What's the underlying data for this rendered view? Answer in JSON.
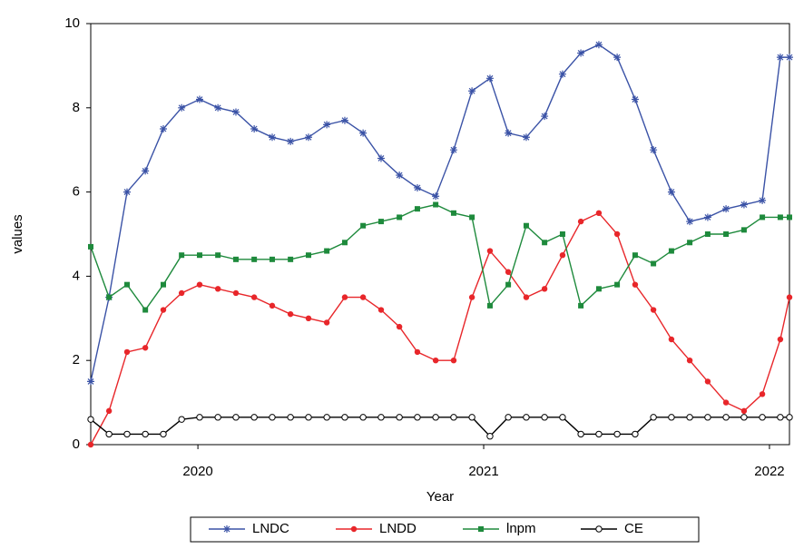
{
  "chart_data": {
    "type": "line",
    "x_label": "Year",
    "y_label": "values",
    "x": [
      2019.625,
      2019.689,
      2019.752,
      2019.816,
      2019.879,
      2019.943,
      2020.006,
      2020.07,
      2020.133,
      2020.197,
      2020.26,
      2020.324,
      2020.387,
      2020.451,
      2020.514,
      2020.578,
      2020.641,
      2020.705,
      2020.768,
      2020.832,
      2020.895,
      2020.959,
      2021.022,
      2021.086,
      2021.149,
      2021.213,
      2021.276,
      2021.34,
      2021.403,
      2021.467,
      2021.53,
      2021.594,
      2021.657,
      2021.721,
      2021.784,
      2021.848,
      2021.911,
      2021.975,
      2022.038,
      2022.07
    ],
    "series": [
      {
        "name": "LNDC",
        "color": "#3a52a6",
        "marker": "star",
        "values": [
          1.5,
          3.5,
          6.0,
          6.5,
          7.5,
          8.0,
          8.2,
          8.0,
          7.9,
          7.5,
          7.3,
          7.2,
          7.3,
          7.6,
          7.7,
          7.4,
          6.8,
          6.4,
          6.1,
          5.9,
          7.0,
          8.4,
          8.7,
          7.4,
          7.3,
          7.8,
          8.8,
          9.3,
          9.5,
          9.2,
          8.2,
          7.0,
          6.0,
          5.3,
          5.4,
          5.6,
          5.7,
          5.8,
          9.2,
          9.2
        ]
      },
      {
        "name": "LNDD",
        "color": "#e8262a",
        "marker": "circle",
        "values": [
          0,
          0.8,
          2.2,
          2.3,
          3.2,
          3.6,
          3.8,
          3.7,
          3.6,
          3.5,
          3.3,
          3.1,
          3.0,
          2.9,
          3.5,
          3.5,
          3.2,
          2.8,
          2.2,
          2.0,
          2.0,
          3.5,
          4.6,
          4.1,
          3.5,
          3.7,
          4.5,
          5.3,
          5.5,
          5.0,
          3.8,
          3.2,
          2.5,
          2.0,
          1.5,
          1.0,
          0.8,
          1.2,
          2.5,
          3.5
        ]
      },
      {
        "name": "lnpm",
        "color": "#1e8a3c",
        "marker": "square",
        "values": [
          4.7,
          3.5,
          3.8,
          3.2,
          3.8,
          4.5,
          4.5,
          4.5,
          4.4,
          4.4,
          4.4,
          4.4,
          4.5,
          4.6,
          4.8,
          5.2,
          5.3,
          5.4,
          5.6,
          5.7,
          5.5,
          5.4,
          3.3,
          3.8,
          5.2,
          4.8,
          5.0,
          3.3,
          3.7,
          3.8,
          4.5,
          4.3,
          4.6,
          4.8,
          5.0,
          5.0,
          5.1,
          5.4,
          5.4,
          5.4
        ]
      },
      {
        "name": "CE",
        "color": "#000000",
        "marker": "open-circle",
        "values": [
          0.6,
          0.25,
          0.25,
          0.25,
          0.25,
          0.6,
          0.65,
          0.65,
          0.65,
          0.65,
          0.65,
          0.65,
          0.65,
          0.65,
          0.65,
          0.65,
          0.65,
          0.65,
          0.65,
          0.65,
          0.65,
          0.65,
          0.2,
          0.65,
          0.65,
          0.65,
          0.65,
          0.25,
          0.25,
          0.25,
          0.25,
          0.65,
          0.65,
          0.65,
          0.65,
          0.65,
          0.65,
          0.65,
          0.65,
          0.65
        ]
      }
    ],
    "xlim": [
      2019.625,
      2022.07
    ],
    "xticks": [
      2020,
      2021,
      2022
    ],
    "ylim": [
      0,
      10
    ],
    "yticks": [
      0,
      2,
      4,
      6,
      8,
      10
    ],
    "grid": false,
    "legend": "bottom"
  }
}
